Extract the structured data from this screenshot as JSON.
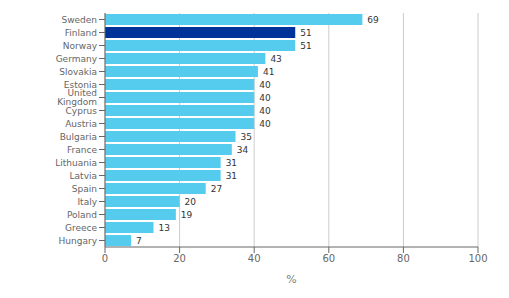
{
  "chart_data": {
    "type": "bar",
    "orientation": "horizontal",
    "categories": [
      "Sweden",
      "Finland",
      "Norway",
      "Germany",
      "Slovakia",
      "Estonia",
      "United Kingdom",
      "Cyprus",
      "Austria",
      "Bulgaria",
      "France",
      "Lithuania",
      "Latvia",
      "Spain",
      "Italy",
      "Poland",
      "Greece",
      "Hungary"
    ],
    "values": [
      69,
      51,
      51,
      43,
      41,
      40,
      40,
      40,
      40,
      35,
      34,
      31,
      31,
      27,
      20,
      19,
      13,
      7
    ],
    "colors": [
      "#55ccee",
      "#003399",
      "#55ccee",
      "#55ccee",
      "#55ccee",
      "#55ccee",
      "#55ccee",
      "#55ccee",
      "#55ccee",
      "#55ccee",
      "#55ccee",
      "#55ccee",
      "#55ccee",
      "#55ccee",
      "#55ccee",
      "#55ccee",
      "#55ccee",
      "#55ccee"
    ],
    "xlabel": "%",
    "xlim": [
      0,
      100
    ],
    "xticks": [
      0,
      20,
      40,
      60,
      80,
      100
    ],
    "grid": true,
    "data_labels": true
  }
}
